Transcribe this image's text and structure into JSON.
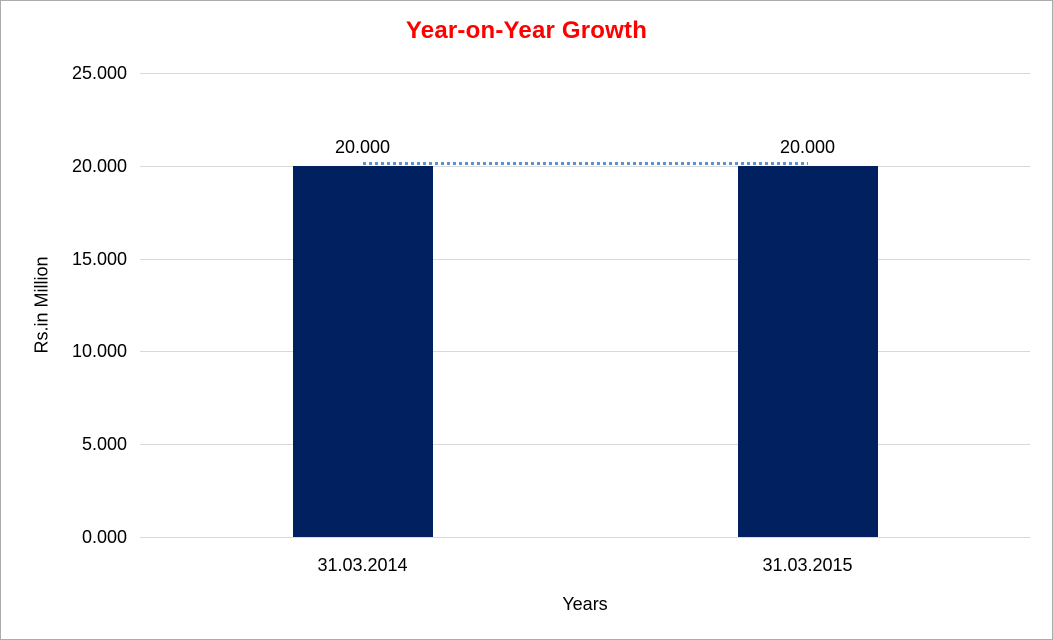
{
  "window": {
    "background": "#ffffff",
    "border_color": "#ababab"
  },
  "chart_data": {
    "type": "bar",
    "title": "Year-on-Year Growth",
    "title_color": "#ff0000",
    "xlabel": "Years",
    "ylabel": "Rs.in Million",
    "categories": [
      "31.03.2014",
      "31.03.2015"
    ],
    "series": [
      {
        "name": "Value",
        "type": "bar",
        "values": [
          20.0,
          20.0
        ],
        "color": "#002060"
      },
      {
        "name": "Trend",
        "type": "line",
        "line_style": "dotted",
        "values": [
          20.0,
          20.0
        ],
        "color": "#5e91cd"
      }
    ],
    "data_labels": [
      "20.000",
      "20.000"
    ],
    "ylim": [
      0,
      25
    ],
    "ytick_interval": 5,
    "yticks": [
      "25.000",
      "20.000",
      "15.000",
      "10.000",
      "5.000",
      "0.000"
    ],
    "grid": true,
    "gridline_color": "#d9d9d9",
    "legend": "none"
  }
}
